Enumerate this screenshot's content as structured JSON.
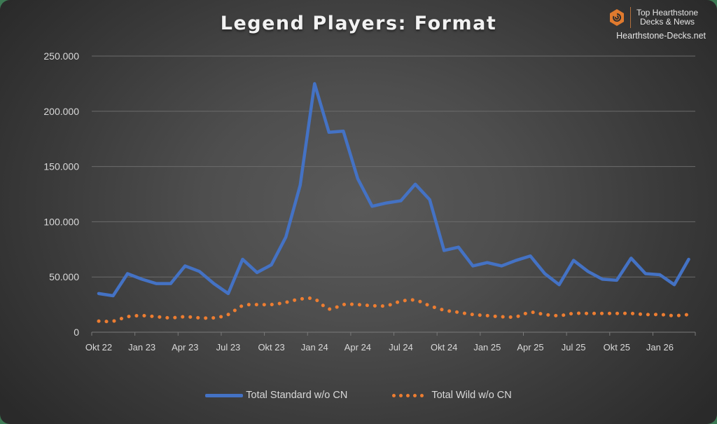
{
  "chart": {
    "title": "Legend Players: Format",
    "brand": {
      "tagline_1": "Top Hearthstone",
      "tagline_2": "Decks & News",
      "site": "Hearthstone-Decks.net",
      "logo_color": "#e07a2e",
      "logo_icon": "hearthstone-swirl-icon"
    },
    "legend": [
      {
        "label": "Total Standard w/o CN",
        "color": "#4472c4",
        "style": "solid"
      },
      {
        "label": "Total Wild w/o CN",
        "color": "#ed7d31",
        "style": "dotted"
      }
    ]
  },
  "chart_data": {
    "type": "line",
    "title": "Legend Players: Format",
    "xlabel": "",
    "ylabel": "",
    "ylim": [
      0,
      250000
    ],
    "yticks": [
      0,
      50000,
      100000,
      150000,
      200000,
      250000
    ],
    "ytick_labels": [
      "0",
      "50.000",
      "100.000",
      "150.000",
      "200.000",
      "250.000"
    ],
    "grid": true,
    "legend_position": "bottom",
    "x": [
      "Okt 22",
      "Nov 22",
      "Dez 22",
      "Jan 23",
      "Feb 23",
      "Mär 23",
      "Apr 23",
      "Mai 23",
      "Jun 23",
      "Jul 23",
      "Aug 23",
      "Sep 23",
      "Okt 23",
      "Nov 23",
      "Dez 23",
      "Jan 24",
      "Feb 24",
      "Mär 24",
      "Apr 24",
      "Mai 24",
      "Jun 24",
      "Jul 24",
      "Aug 24",
      "Sep 24",
      "Okt 24",
      "Nov 24",
      "Dez 24",
      "Jan 25",
      "Feb 25",
      "Mär 25",
      "Apr 25",
      "Mai 25",
      "Jun 25",
      "Jul 25",
      "Aug 25",
      "Sep 25",
      "Okt 25",
      "Nov 25",
      "Dez 25",
      "Jan 26",
      "Feb 26",
      "Mär 26"
    ],
    "xtick_labels": [
      "Okt 22",
      "Jan 23",
      "Apr 23",
      "Jul 23",
      "Okt 23",
      "Jan 24",
      "Apr 24",
      "Jul 24",
      "Okt 24",
      "Jan 25",
      "Apr 25",
      "Jul 25",
      "Okt 25",
      "Jan 26"
    ],
    "series": [
      {
        "name": "Total Standard w/o CN",
        "color": "#4472c4",
        "style": "solid",
        "values": [
          35000,
          33000,
          53000,
          48000,
          44000,
          44000,
          60000,
          55000,
          44000,
          35000,
          66000,
          54000,
          61000,
          86000,
          133000,
          225000,
          181000,
          182000,
          139000,
          114000,
          117000,
          119000,
          134000,
          120000,
          74000,
          77000,
          60000,
          63000,
          60000,
          65000,
          69000,
          53000,
          43000,
          65000,
          55000,
          48000,
          47000,
          67000,
          53000,
          52000,
          43000,
          66000
        ]
      },
      {
        "name": "Total Wild w/o CN",
        "color": "#ed7d31",
        "style": "dotted",
        "values": [
          10000,
          10000,
          14000,
          15000,
          14000,
          13000,
          14000,
          13000,
          13000,
          16000,
          24000,
          25000,
          25000,
          27000,
          30000,
          30000,
          21000,
          25000,
          25000,
          24000,
          24000,
          28000,
          29000,
          24000,
          20000,
          18000,
          16000,
          15000,
          14000,
          14000,
          18000,
          16000,
          15000,
          17000,
          17000,
          17000,
          17000,
          17000,
          16000,
          16000,
          15000,
          16000
        ]
      }
    ]
  }
}
